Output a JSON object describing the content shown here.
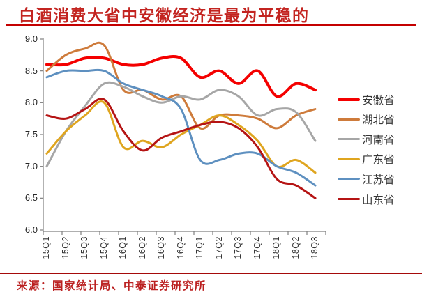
{
  "title": "白酒消费大省中安徽经济是最为平稳的",
  "footer": {
    "source": "来源：国家统计局、中泰证券研究所"
  },
  "styles": {
    "title_color": "#c32420",
    "rule_color": "#c40000",
    "footer_rule_color": "#a50a0a",
    "axis_color": "#7f7f7f"
  },
  "chart_data": {
    "type": "line",
    "smoothed": true,
    "grid": false,
    "legend_position": "right",
    "ylim": [
      6.0,
      9.0
    ],
    "y_ticks": [
      "9.0",
      "8.5",
      "8.0",
      "7.5",
      "7.0",
      "6.5",
      "6.0"
    ],
    "categories": [
      "15Q1",
      "15Q2",
      "15Q3",
      "15Q4",
      "16Q1",
      "16Q2",
      "16Q3",
      "16Q4",
      "17Q1",
      "17Q2",
      "17Q3",
      "17Q4",
      "18Q1",
      "18Q2",
      "18Q3"
    ],
    "series": [
      {
        "name": "安徽省",
        "color": "#f40000",
        "line_width": 4,
        "values": [
          8.6,
          8.6,
          8.7,
          8.7,
          8.6,
          8.6,
          8.7,
          8.7,
          8.4,
          8.5,
          8.3,
          8.5,
          8.1,
          8.3,
          8.2
        ]
      },
      {
        "name": "湖北省",
        "color": "#ce7b3b",
        "line_width": 3,
        "values": [
          8.5,
          8.75,
          8.85,
          8.9,
          8.2,
          8.2,
          8.05,
          8.1,
          7.6,
          7.8,
          7.8,
          7.75,
          7.6,
          7.8,
          7.9
        ]
      },
      {
        "name": "河南省",
        "color": "#a6a6a6",
        "line_width": 3,
        "values": [
          7.0,
          7.55,
          7.95,
          8.3,
          8.25,
          8.1,
          8.0,
          8.1,
          8.05,
          8.2,
          8.1,
          7.8,
          7.9,
          7.85,
          7.4
        ]
      },
      {
        "name": "广东省",
        "color": "#dfa51f",
        "line_width": 3,
        "values": [
          7.2,
          7.55,
          7.8,
          8.0,
          7.3,
          7.4,
          7.3,
          7.5,
          7.65,
          7.8,
          7.65,
          7.4,
          7.0,
          7.1,
          6.9
        ]
      },
      {
        "name": "江苏省",
        "color": "#5e90c0",
        "line_width": 3,
        "values": [
          8.4,
          8.5,
          8.5,
          8.5,
          8.3,
          8.2,
          8.1,
          7.9,
          7.1,
          7.1,
          7.2,
          7.2,
          7.0,
          6.9,
          6.7
        ]
      },
      {
        "name": "山东省",
        "color": "#b51414",
        "line_width": 3,
        "values": [
          7.8,
          7.75,
          7.9,
          8.05,
          7.55,
          7.25,
          7.45,
          7.55,
          7.65,
          7.7,
          7.6,
          7.3,
          6.8,
          6.7,
          6.5
        ]
      }
    ]
  }
}
